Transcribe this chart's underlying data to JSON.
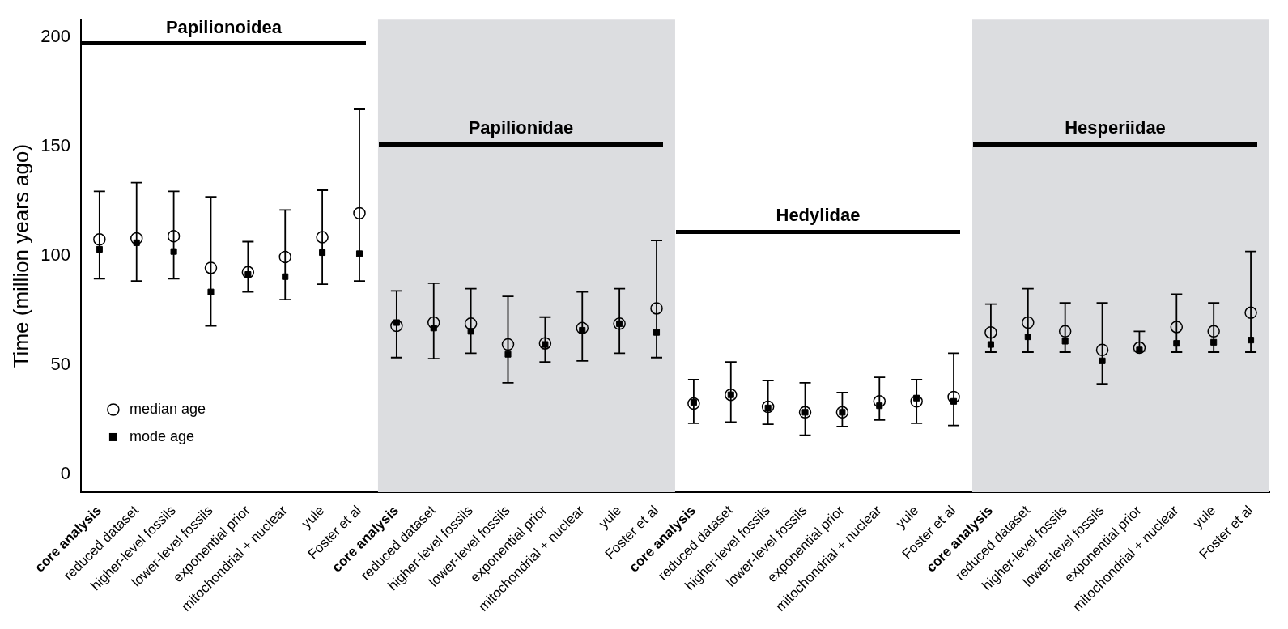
{
  "chart_data": {
    "type": "scatter",
    "ylabel": "Time (million years ago)",
    "categories": [
      "core analysis",
      "reduced dataset",
      "higher-level fossils",
      "lower-level fossils",
      "exponential prior",
      "mitochondrial + nuclear",
      "yule",
      "Foster et al",
      "core analysis",
      "reduced dataset",
      "higher-level fossils",
      "lower-level fossils",
      "exponential prior",
      "mitochondrial + nuclear",
      "yule",
      "Foster et al",
      "core analysis",
      "reduced dataset",
      "higher-level fossils",
      "lower-level fossils",
      "exponential prior",
      "mitochondrial + nuclear",
      "yule",
      "Foster et al",
      "core analysis",
      "reduced dataset",
      "higher-level fossils",
      "lower-level fossils",
      "exponential prior",
      "mitochondrial + nuclear",
      "yule",
      "Foster et al"
    ],
    "series": [
      {
        "name": "median age",
        "marker": "circle",
        "color": "#000000",
        "values": [
          107.5,
          108,
          109,
          94.5,
          92.5,
          99.5,
          108.5,
          119.5,
          68,
          69.5,
          69,
          59.5,
          60,
          67,
          69,
          76,
          32.5,
          36.5,
          31,
          28.5,
          28.5,
          33.5,
          33.5,
          35.5,
          65,
          69.5,
          65.5,
          57,
          58,
          67.5,
          65.5,
          74
        ],
        "errors": [
          [
            89.5,
            129.5
          ],
          [
            88.5,
            133.5
          ],
          [
            89.5,
            129.5
          ],
          [
            68,
            127
          ],
          [
            83.5,
            106.5
          ],
          [
            80,
            121
          ],
          [
            87,
            130
          ],
          [
            88.5,
            167
          ],
          [
            53.5,
            84
          ],
          [
            53,
            87.5
          ],
          [
            55.5,
            85
          ],
          [
            42,
            81.5
          ],
          [
            51.5,
            72
          ],
          [
            52,
            83.5
          ],
          [
            55.5,
            85
          ],
          [
            53.5,
            107
          ],
          [
            23.5,
            43.5
          ],
          [
            24,
            51.5
          ],
          [
            23,
            43
          ],
          [
            18,
            42
          ],
          [
            22,
            37.5
          ],
          [
            25,
            44.5
          ],
          [
            23.5,
            43.5
          ],
          [
            22.5,
            55.5
          ],
          [
            56,
            78
          ],
          [
            56,
            85
          ],
          [
            56,
            78.5
          ],
          [
            41.5,
            78.5
          ],
          [
            56.5,
            65.5
          ],
          [
            56,
            82.5
          ],
          [
            56,
            78.5
          ],
          [
            56,
            102
          ]
        ]
      },
      {
        "name": "mode age",
        "marker": "square",
        "color": "#000000",
        "values": [
          103,
          106,
          102,
          83.5,
          91.5,
          90.5,
          101.5,
          101,
          69.5,
          67,
          65.5,
          55,
          59.5,
          66,
          69,
          65,
          33,
          36.5,
          30.5,
          28.5,
          28.5,
          31.5,
          35,
          33.5,
          59.5,
          63,
          61,
          52,
          57,
          60,
          60.5,
          61.5
        ]
      }
    ],
    "ylim": [
      -8,
      208
    ],
    "yticks": [
      0,
      50,
      100,
      150,
      200
    ],
    "grid": false,
    "legend": "bottom left",
    "annotations": [
      "Papilionoidea",
      "Papilionidae",
      "Hedylidae",
      "Hesperiidae"
    ]
  }
}
